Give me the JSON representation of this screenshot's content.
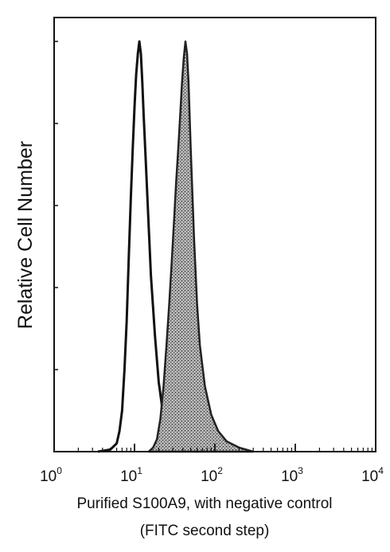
{
  "chart_data": {
    "type": "area",
    "title": "",
    "ylabel": "Relative Cell Number",
    "xlabel_lines": [
      "Purified S100A9, with negative control",
      "(FITC second step)"
    ],
    "x_scale": "log",
    "xlim": [
      1,
      10000
    ],
    "ylim": [
      0,
      1
    ],
    "x_ticks": [
      {
        "base": "10",
        "exp": "0",
        "value": 1
      },
      {
        "base": "10",
        "exp": "1",
        "value": 10
      },
      {
        "base": "10",
        "exp": "2",
        "value": 100
      },
      {
        "base": "10",
        "exp": "3",
        "value": 1000
      },
      {
        "base": "10",
        "exp": "4",
        "value": 10000
      }
    ],
    "y_ticks": [
      0,
      0.2,
      0.4,
      0.6,
      0.8,
      1.0
    ],
    "grid": false,
    "legend": "none",
    "series": [
      {
        "role": "negative control",
        "style": "outline",
        "color": "#111111",
        "points": [
          [
            3.5,
            0.0
          ],
          [
            5.0,
            0.005
          ],
          [
            6.0,
            0.02
          ],
          [
            6.5,
            0.05
          ],
          [
            7.0,
            0.1
          ],
          [
            7.5,
            0.2
          ],
          [
            8.0,
            0.32
          ],
          [
            8.5,
            0.48
          ],
          [
            9.0,
            0.62
          ],
          [
            9.5,
            0.74
          ],
          [
            10.0,
            0.84
          ],
          [
            10.5,
            0.92
          ],
          [
            11.0,
            0.97
          ],
          [
            11.5,
            1.0
          ],
          [
            12.0,
            0.97
          ],
          [
            12.5,
            0.9
          ],
          [
            13.0,
            0.82
          ],
          [
            14.0,
            0.68
          ],
          [
            15.0,
            0.55
          ],
          [
            16.0,
            0.43
          ],
          [
            18.0,
            0.28
          ],
          [
            20.0,
            0.17
          ],
          [
            22.0,
            0.11
          ],
          [
            25.0,
            0.06
          ],
          [
            30.0,
            0.03
          ],
          [
            40.0,
            0.01
          ],
          [
            60.0,
            0.0
          ]
        ]
      },
      {
        "role": "S100A9",
        "style": "filled",
        "color": "#555555",
        "points": [
          [
            15.0,
            0.0
          ],
          [
            17.0,
            0.01
          ],
          [
            19.0,
            0.03
          ],
          [
            21.0,
            0.08
          ],
          [
            23.0,
            0.16
          ],
          [
            25.0,
            0.26
          ],
          [
            27.0,
            0.36
          ],
          [
            29.0,
            0.46
          ],
          [
            31.0,
            0.56
          ],
          [
            33.0,
            0.66
          ],
          [
            35.0,
            0.74
          ],
          [
            37.0,
            0.82
          ],
          [
            39.0,
            0.9
          ],
          [
            41.0,
            0.96
          ],
          [
            43.0,
            1.0
          ],
          [
            45.0,
            0.97
          ],
          [
            47.0,
            0.9
          ],
          [
            50.0,
            0.74
          ],
          [
            55.0,
            0.52
          ],
          [
            60.0,
            0.36
          ],
          [
            65.0,
            0.26
          ],
          [
            75.0,
            0.16
          ],
          [
            90.0,
            0.09
          ],
          [
            110.0,
            0.05
          ],
          [
            140.0,
            0.025
          ],
          [
            200.0,
            0.01
          ],
          [
            300.0,
            0.0
          ]
        ]
      }
    ]
  }
}
